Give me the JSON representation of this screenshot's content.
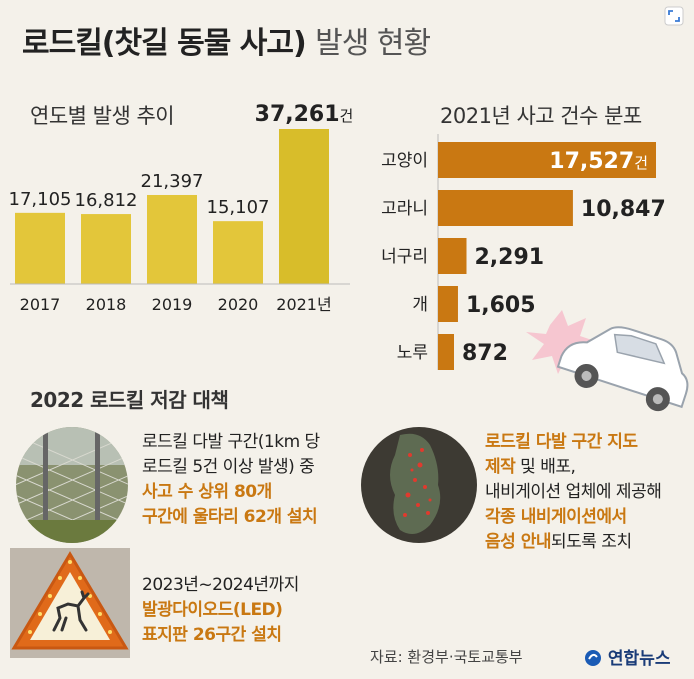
{
  "title": {
    "main": "로드킬(찻길 동물 사고)",
    "sub": "발생 현황"
  },
  "chart_data": [
    {
      "type": "bar",
      "title": "연도별 발생 추이",
      "categories": [
        "2017",
        "2018",
        "2019",
        "2020",
        "2021년"
      ],
      "values": [
        17105,
        16812,
        21397,
        15107,
        37261
      ],
      "value_labels": [
        "17,105",
        "16,812",
        "21,397",
        "15,107",
        "37,261"
      ],
      "value_unit_last": "건",
      "bar_color": "#e3c63a",
      "bar_color_highlight": "#d8bd2a"
    },
    {
      "type": "bar",
      "orientation": "horizontal",
      "title": "2021년 사고 건수 분포",
      "categories": [
        "고양이",
        "고라니",
        "너구리",
        "개",
        "노루"
      ],
      "values": [
        17527,
        10847,
        2291,
        1605,
        872
      ],
      "value_labels": [
        "17,527",
        "10,847",
        "2,291",
        "1,605",
        "872"
      ],
      "value_unit_first": "건",
      "bar_color": "#c97812"
    }
  ],
  "measures": {
    "title": "2022 로드킬 저감 대책",
    "item1": {
      "line1": "로드킬 다발 구간(1km 당",
      "line2": "로드킬 5건 이상 발생) 중",
      "line3": "사고 수 상위 80개",
      "line4": "구간에 울타리 62개 설치"
    },
    "item2": {
      "line1": "2023년~2024년까지",
      "line2": "발광다이오드(LED)",
      "line3": "표지판 26구간 설치"
    },
    "item3": {
      "line1_hl": "로드킬 다발 구간 지도",
      "line2_hl": "제작",
      "line2_rest": " 및 배포,",
      "line3": "내비게이션 업체에 제공해",
      "line4_hl": "각종 내비게이션에서",
      "line5_hl": "음성 안내",
      "line5_rest": "되도록 조치"
    }
  },
  "source": "자료: 환경부·국토교통부",
  "logo": "연합뉴스",
  "colors": {
    "background": "#f4f1ea",
    "accent": "#c97812",
    "yellow": "#e3c63a"
  }
}
